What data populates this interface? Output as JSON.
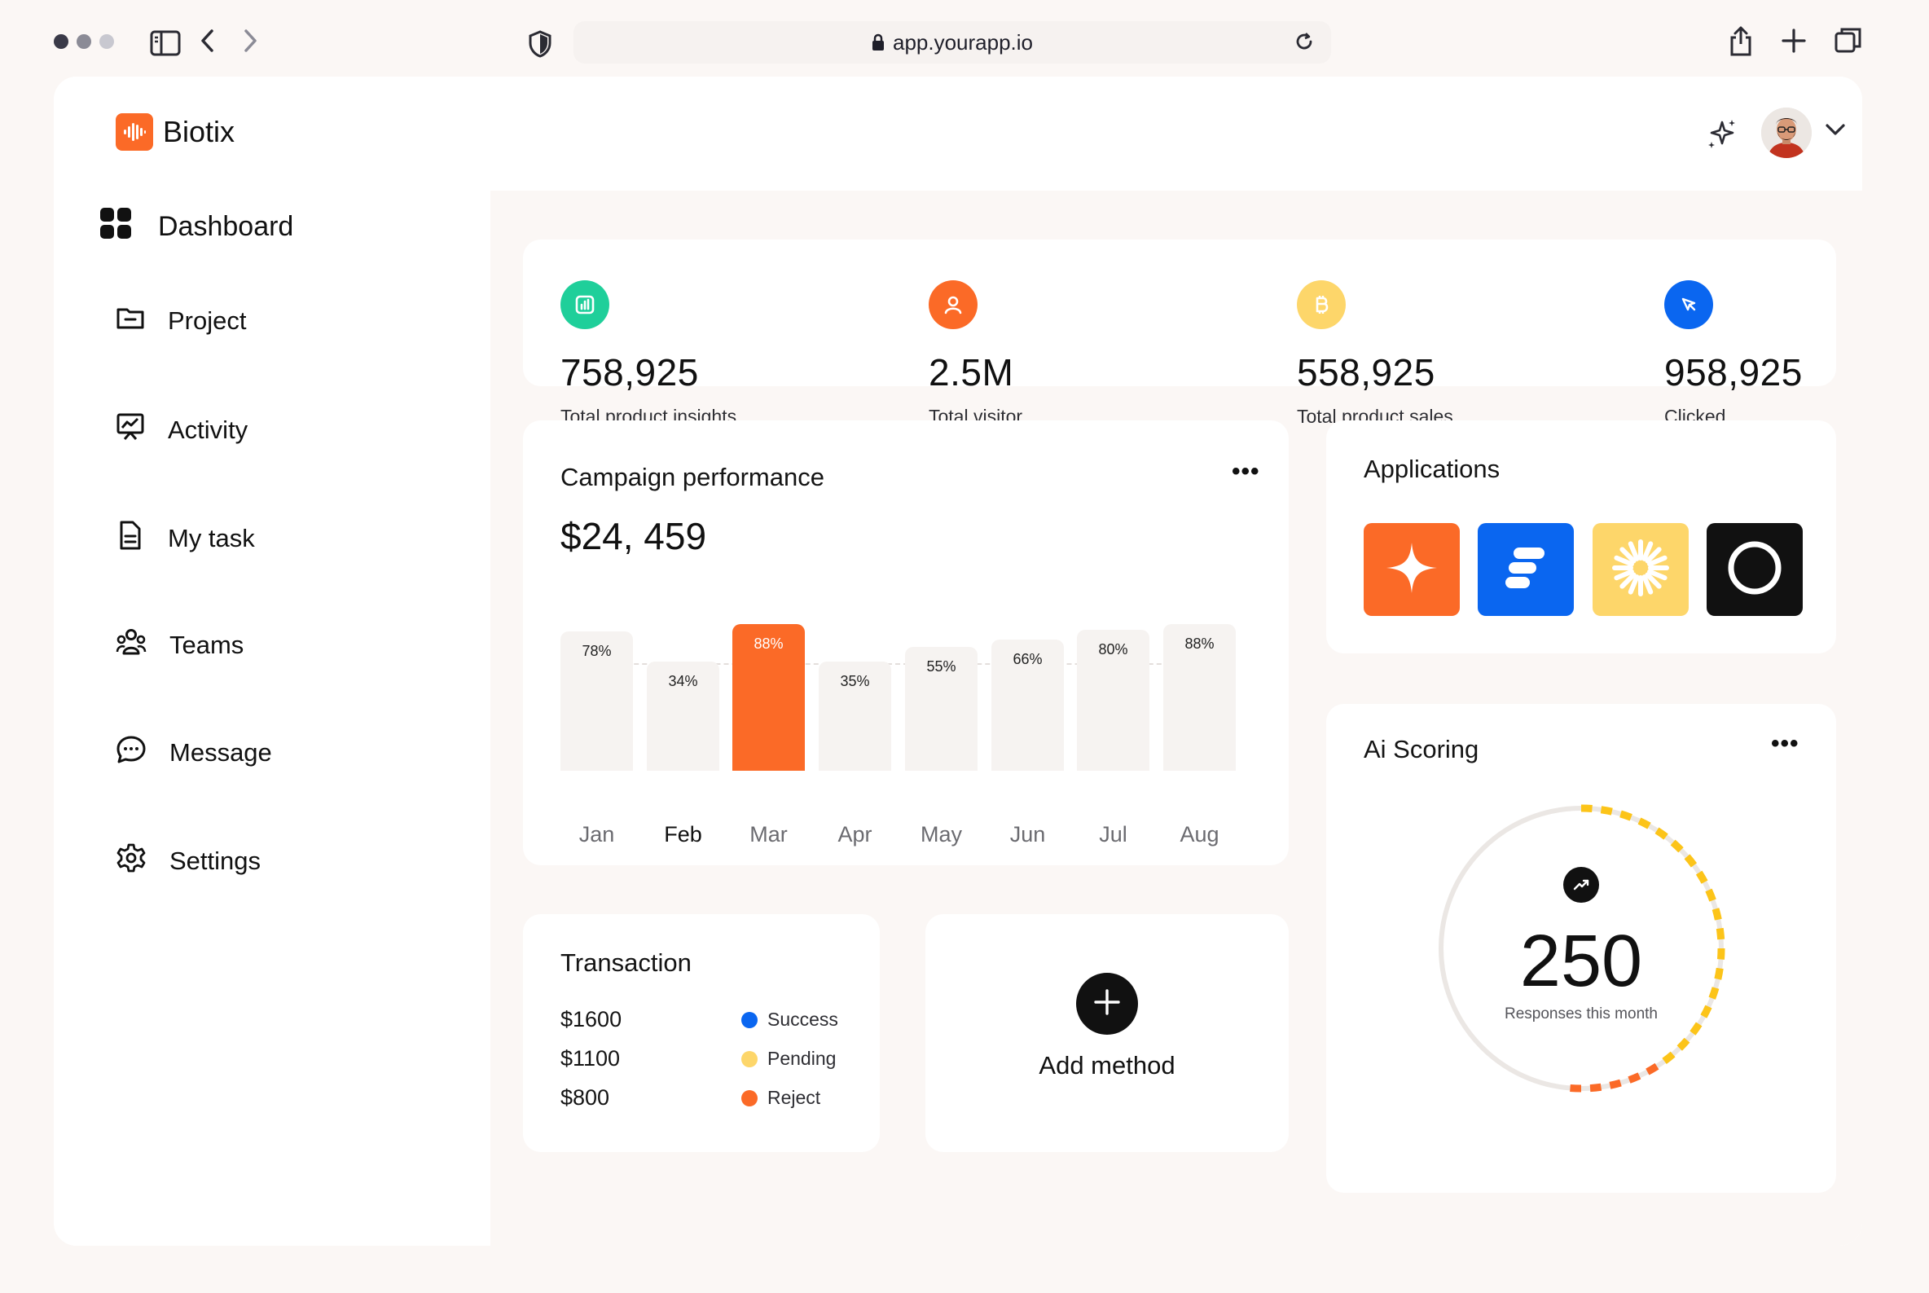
{
  "browser": {
    "url": "app.yourapp.io",
    "traffic_colors": [
      "#3a3a48",
      "#8b8b96",
      "#c8c8d0"
    ]
  },
  "app": {
    "brand": "Biotix",
    "brand_color": "#fb6a27"
  },
  "sidebar": {
    "items": [
      {
        "label": "Dashboard",
        "icon": "grid-icon",
        "active": true
      },
      {
        "label": "Project",
        "icon": "folder-icon"
      },
      {
        "label": "Activity",
        "icon": "presentation-chart-icon"
      },
      {
        "label": "My task",
        "icon": "document-icon"
      },
      {
        "label": "Teams",
        "icon": "users-icon"
      },
      {
        "label": "Message",
        "icon": "chat-icon"
      },
      {
        "label": "Settings",
        "icon": "gear-icon"
      }
    ]
  },
  "stats": [
    {
      "value": "758,925",
      "label": "Total product insights",
      "icon": "bar-chart-icon",
      "color": "#1fcf9a"
    },
    {
      "value": "2.5M",
      "label": "Total visitor",
      "icon": "user-icon",
      "color": "#fb6a27"
    },
    {
      "value": "558,925",
      "label": "Total product sales",
      "icon": "bitcoin-icon",
      "color": "#fdd66a"
    },
    {
      "value": "958,925",
      "label": "Clicked",
      "icon": "cursor-icon",
      "color": "#0a66f0"
    }
  ],
  "campaign": {
    "title": "Campaign performance",
    "amount": "$24, 459",
    "menu": "•••"
  },
  "chart_data": {
    "type": "bar",
    "categories": [
      "Jan",
      "Feb",
      "Mar",
      "Apr",
      "May",
      "Jun",
      "Jul",
      "Aug"
    ],
    "values": [
      78,
      34,
      88,
      35,
      55,
      66,
      80,
      88
    ],
    "value_labels": [
      "78%",
      "34%",
      "88%",
      "35%",
      "55%",
      "66%",
      "80%",
      "88%"
    ],
    "highlight_index": 2,
    "active_category_index": 1,
    "highlight_color": "#fb6a27",
    "bar_color": "#f6f3f1"
  },
  "transaction": {
    "title": "Transaction",
    "rows": [
      {
        "amount": "$1600",
        "status": "Success",
        "color": "#0a66f0"
      },
      {
        "amount": "$1100",
        "status": "Pending",
        "color": "#fdd66a"
      },
      {
        "amount": "$800",
        "status": "Reject",
        "color": "#fb6a27"
      }
    ]
  },
  "add_method": {
    "label": "Add method"
  },
  "applications": {
    "title": "Applications",
    "tiles": [
      {
        "icon": "sparkle-star-icon",
        "color": "#fb6a27"
      },
      {
        "icon": "stacked-bars-icon",
        "color": "#0a66f0"
      },
      {
        "icon": "sunburst-icon",
        "color": "#fdd66a"
      },
      {
        "icon": "ring-icon",
        "color": "#111111"
      }
    ]
  },
  "ai_scoring": {
    "title": "Ai Scoring",
    "menu": "•••",
    "value": "250",
    "label": "Responses this month",
    "progress": 0.5
  }
}
